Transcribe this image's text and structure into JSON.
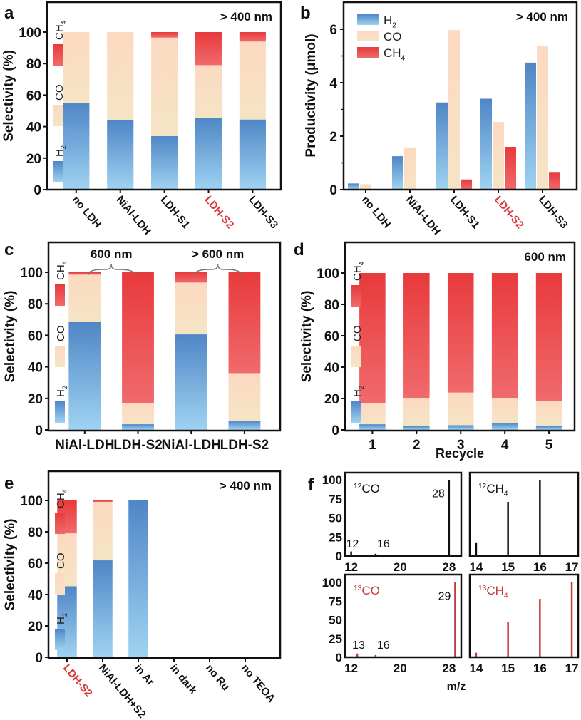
{
  "colors": {
    "h2_top": "#4f86c6",
    "h2_bottom": "#9fd3f2",
    "co_top": "#fcd9c2",
    "co_bottom": "#f5e4c4",
    "ch4_top": "#e83a3c",
    "ch4_bottom": "#f06a6c",
    "axis": "#111111",
    "highlight_text": "#d9373a",
    "isotope_red": "#c43a3a"
  },
  "chart_data": [
    {
      "panel": "a",
      "type": "bar",
      "stacked": true,
      "annotation": "> 400 nm",
      "ylabel": "Selectivity (%)",
      "xlabel": "",
      "ylim": [
        0,
        100
      ],
      "yticks": [
        "0",
        "20",
        "40",
        "60",
        "80",
        "100"
      ],
      "categories": [
        "no LDH",
        "NiAl-LDH",
        "LDH-S1",
        "LDH-S2",
        "LDH-S3"
      ],
      "highlight_category": "LDH-S2",
      "legend": [
        "H2",
        "CO",
        "CH4"
      ],
      "legend_placement": "left-inside-vertical",
      "series": [
        {
          "name": "H2",
          "values": [
            55,
            44,
            34,
            45.5,
            44.5
          ]
        },
        {
          "name": "CO",
          "values": [
            45,
            56,
            62.5,
            33.5,
            49.5
          ]
        },
        {
          "name": "CH4",
          "values": [
            0,
            0,
            3.5,
            21,
            6
          ]
        }
      ]
    },
    {
      "panel": "b",
      "type": "bar",
      "stacked": false,
      "annotation": "> 400 nm",
      "ylabel": "Productivity (μmol)",
      "xlabel": "",
      "ylim": [
        0,
        7
      ],
      "yticks": [
        "0",
        "2",
        "4",
        "6"
      ],
      "categories": [
        "no LDH",
        "NiAl-LDH",
        "LDH-S1",
        "LDH-S2",
        "LDH-S3"
      ],
      "highlight_category": "LDH-S2",
      "legend": [
        "H2",
        "CO",
        "CH4"
      ],
      "legend_placement": "top-left",
      "series": [
        {
          "name": "H2",
          "values": [
            0.23,
            1.25,
            3.26,
            3.4,
            4.75
          ]
        },
        {
          "name": "CO",
          "values": [
            0.2,
            1.58,
            5.97,
            2.53,
            5.36
          ]
        },
        {
          "name": "CH4",
          "values": [
            0,
            0,
            0.38,
            1.6,
            0.66
          ]
        }
      ]
    },
    {
      "panel": "c",
      "type": "bar",
      "stacked": true,
      "ylabel": "Selectivity (%)",
      "xlabel": "",
      "ylim": [
        0,
        100
      ],
      "yticks": [
        "0",
        "20",
        "40",
        "60",
        "80",
        "100"
      ],
      "categories": [
        "NiAl-LDH",
        "LDH-S2",
        "NiAl-LDH",
        "LDH-S2"
      ],
      "groups": [
        {
          "label": "600 nm",
          "categories": [
            0,
            1
          ]
        },
        {
          "label": "> 600 nm",
          "categories": [
            2,
            3
          ]
        }
      ],
      "legend": [
        "H2",
        "CO",
        "CH4"
      ],
      "legend_placement": "left-inside-vertical",
      "series": [
        {
          "name": "H2",
          "values": [
            68.7,
            3.6,
            60.6,
            5.7
          ]
        },
        {
          "name": "CO",
          "values": [
            29.8,
            13.2,
            32.9,
            30.3
          ]
        },
        {
          "name": "CH4",
          "values": [
            1.5,
            83.2,
            6.5,
            64
          ]
        }
      ]
    },
    {
      "panel": "d",
      "type": "bar",
      "stacked": true,
      "annotation": "600 nm",
      "ylabel": "Selectivity (%)",
      "xlabel": "Recycle",
      "ylim": [
        0,
        100
      ],
      "yticks": [
        "0",
        "20",
        "40",
        "60",
        "80",
        "100"
      ],
      "categories": [
        "1",
        "2",
        "3",
        "4",
        "5"
      ],
      "legend": [
        "H2",
        "CO",
        "CH4"
      ],
      "legend_placement": "left-inside-vertical",
      "series": [
        {
          "name": "H2",
          "values": [
            3.6,
            2.4,
            3.0,
            4.4,
            2.4
          ]
        },
        {
          "name": "CO",
          "values": [
            13.4,
            17.9,
            20.8,
            15.9,
            15.9
          ]
        },
        {
          "name": "CH4",
          "values": [
            83,
            79.7,
            76.2,
            79.7,
            81.7
          ]
        }
      ]
    },
    {
      "panel": "e",
      "type": "bar",
      "stacked": true,
      "annotation": "> 400 nm",
      "ylabel": "Selectivity (%)",
      "xlabel": "",
      "ylim": [
        0,
        100
      ],
      "yticks": [
        "0",
        "20",
        "40",
        "60",
        "80",
        "100"
      ],
      "categories": [
        "LDH-S2",
        "NiAl-LDH+S2",
        "in Ar",
        "in dark",
        "no Ru",
        "no TEOA"
      ],
      "highlight_category": "LDH-S2",
      "legend": [
        "H2",
        "CO",
        "CH4"
      ],
      "legend_placement": "left-inside-vertical",
      "series": [
        {
          "name": "H2",
          "values": [
            45.3,
            61.8,
            100,
            0,
            0,
            0
          ]
        },
        {
          "name": "CO",
          "values": [
            33.7,
            37.3,
            0,
            0,
            0,
            0
          ]
        },
        {
          "name": "CH4",
          "values": [
            21,
            0.9,
            0,
            0,
            0,
            0
          ]
        }
      ]
    },
    {
      "panel": "f",
      "type": "bar",
      "subtype": "mass-spectrum",
      "xlabel": "m/z",
      "ylim": [
        0,
        100
      ],
      "yticks": [
        "0",
        "25",
        "50",
        "75",
        "100"
      ],
      "subplots": [
        {
          "label": "12CO",
          "label_main": "CO",
          "label_sup": "12",
          "label_sub": "",
          "color": "black",
          "xlim": [
            11,
            30
          ],
          "xticks": [
            12,
            20,
            28
          ],
          "peaks": [
            {
              "x": 12,
              "y": 6,
              "label": "12"
            },
            {
              "x": 16,
              "y": 3,
              "label": "16"
            },
            {
              "x": 28,
              "y": 100,
              "label": "28"
            }
          ]
        },
        {
          "label": "12CH4",
          "label_main": "CH",
          "label_sup": "12",
          "label_sub": "4",
          "color": "black",
          "xlim": [
            13.8,
            17.2
          ],
          "xticks": [
            14,
            15,
            16,
            17
          ],
          "peaks": [
            {
              "x": 14,
              "y": 17
            },
            {
              "x": 15,
              "y": 71
            },
            {
              "x": 16,
              "y": 100
            },
            {
              "x": 17,
              "y": 1
            }
          ]
        },
        {
          "label": "13CO",
          "label_main": "CO",
          "label_sup": "13",
          "label_sub": "",
          "color": "red",
          "xlim": [
            11,
            30
          ],
          "xticks": [
            12,
            20,
            28
          ],
          "peaks": [
            {
              "x": 13,
              "y": 5,
              "label": "13"
            },
            {
              "x": 16,
              "y": 3,
              "label": "16"
            },
            {
              "x": 29,
              "y": 100,
              "label": "29"
            }
          ]
        },
        {
          "label": "13CH4",
          "label_main": "CH",
          "label_sup": "13",
          "label_sub": "4",
          "color": "red",
          "xlim": [
            13.8,
            17.2
          ],
          "xticks": [
            14,
            15,
            16,
            17
          ],
          "peaks": [
            {
              "x": 14,
              "y": 6
            },
            {
              "x": 15,
              "y": 47
            },
            {
              "x": 16,
              "y": 78
            },
            {
              "x": 17,
              "y": 100
            }
          ]
        }
      ]
    }
  ]
}
